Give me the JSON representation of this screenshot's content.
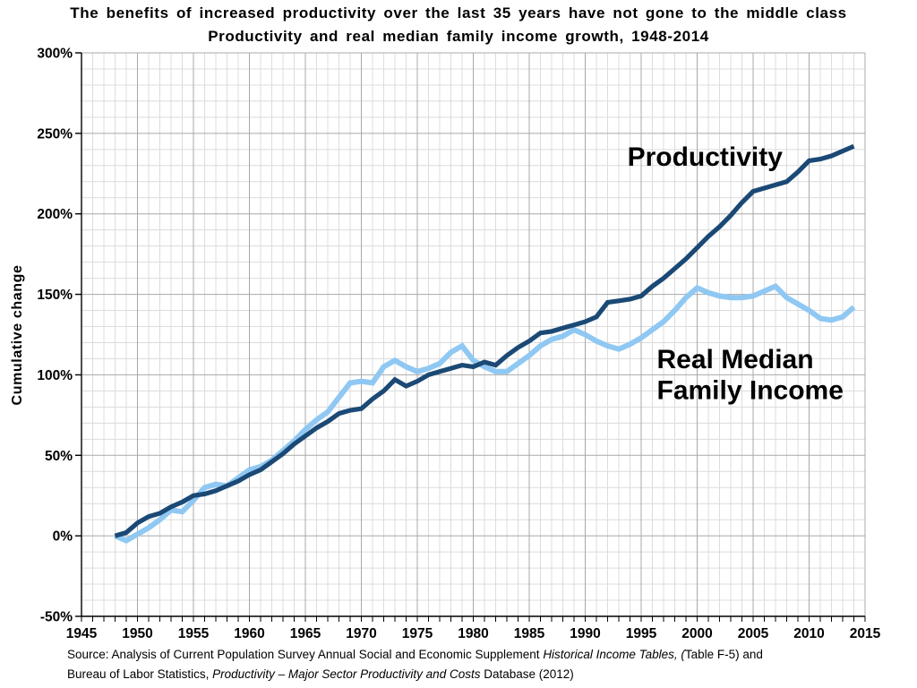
{
  "page": {
    "title_line1": "The benefits of increased productivity over the last 35 years have not gone to the middle class",
    "title_line2": "Productivity and real median family income growth, 1948-2014"
  },
  "source": {
    "line1_regular": "Source:  Analysis of Current Population Survey Annual Social and Economic Supplement ",
    "line1_italic": "Historical Income Tables, (",
    "line1_end": "Table F-5) and",
    "line2_regular": "Bureau of Labor Statistics, ",
    "line2_italic": "Productivity – Major Sector Productivity and Costs",
    "line2_end": " Database (2012)"
  },
  "chart_data": {
    "type": "line",
    "title": "The benefits of increased productivity over the last 35 years have not gone to the middle class",
    "subtitle": "Productivity and real median family income growth, 1948-2014",
    "xlabel": "",
    "ylabel": "Cumulative change",
    "xlim": [
      1945,
      2015
    ],
    "ylim": [
      -50,
      300
    ],
    "x_major_step": 5,
    "x_minor_step": 1,
    "y_major_step": 50,
    "y_minor_step": 10,
    "grid": true,
    "legend": "none (direct line labels)",
    "y_tick_suffix": "%",
    "x": [
      1948,
      1949,
      1950,
      1951,
      1952,
      1953,
      1954,
      1955,
      1956,
      1957,
      1958,
      1959,
      1960,
      1961,
      1962,
      1963,
      1964,
      1965,
      1966,
      1967,
      1968,
      1969,
      1970,
      1971,
      1972,
      1973,
      1974,
      1975,
      1976,
      1977,
      1978,
      1979,
      1980,
      1981,
      1982,
      1983,
      1984,
      1985,
      1986,
      1987,
      1988,
      1989,
      1990,
      1991,
      1992,
      1993,
      1994,
      1995,
      1996,
      1997,
      1998,
      1999,
      2000,
      2001,
      2002,
      2003,
      2004,
      2005,
      2006,
      2007,
      2008,
      2009,
      2010,
      2011,
      2012,
      2013,
      2014
    ],
    "series": [
      {
        "name": "Real Median Family Income",
        "color": "#8FC8F2",
        "width": 6,
        "values": [
          0,
          -3,
          1,
          5,
          10,
          16,
          15,
          22,
          30,
          32,
          31,
          36,
          41,
          43,
          47,
          53,
          59,
          66,
          72,
          77,
          86,
          95,
          96,
          95,
          105,
          109,
          105,
          102,
          104,
          107,
          114,
          118,
          109,
          105,
          102,
          102,
          107,
          112,
          118,
          122,
          124,
          128,
          125,
          121,
          118,
          116,
          119,
          123,
          128,
          133,
          140,
          148,
          154,
          151,
          149,
          148,
          148,
          149,
          152,
          155,
          148,
          144,
          140,
          135,
          134,
          136,
          142
        ]
      },
      {
        "name": "Productivity",
        "color": "#1B4975",
        "width": 5.2,
        "values": [
          0,
          2,
          8,
          12,
          14,
          18,
          21,
          25,
          26,
          28,
          31,
          34,
          38,
          41,
          46,
          51,
          57,
          62,
          67,
          71,
          76,
          78,
          79,
          85,
          90,
          97,
          93,
          96,
          100,
          102,
          104,
          106,
          105,
          108,
          106,
          112,
          117,
          121,
          126,
          127,
          129,
          131,
          133,
          136,
          145,
          146,
          147,
          149,
          155,
          160,
          166,
          172,
          179,
          186,
          192,
          199,
          207,
          214,
          216,
          218,
          220,
          226,
          233,
          234,
          236,
          239,
          242
        ]
      }
    ],
    "annotations": [
      {
        "text": "Productivity",
        "year": 2000.7,
        "value": 230,
        "anchor": "middle"
      },
      {
        "text": "Real Median",
        "year": 1996.4,
        "value": 104,
        "anchor": "start"
      },
      {
        "text": "Family Income",
        "year": 1996.4,
        "value": 84.8,
        "anchor": "start"
      }
    ],
    "colors": {
      "grid_minor": "#DCDCDC",
      "grid_major": "#A8A8A8",
      "axis": "#000000"
    }
  }
}
